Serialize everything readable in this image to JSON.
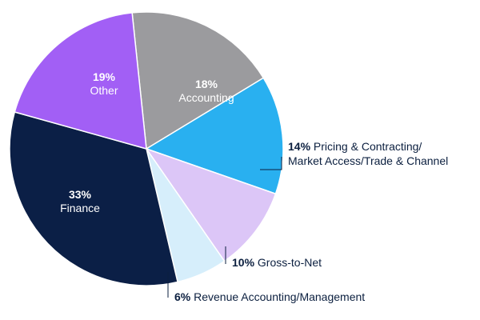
{
  "chart_data": {
    "type": "pie",
    "slices": [
      {
        "label": "Accounting",
        "value": 18,
        "pct_text": "18%",
        "color": "#9b9b9e",
        "text_color": "#ffffff",
        "label_inside": true
      },
      {
        "label": "Pricing & Contracting/ Market Access/Trade & Channel",
        "line1": "Pricing & Contracting/",
        "line2": "Market Access/Trade & Channel",
        "value": 14,
        "pct_text": "14%",
        "color": "#29b0f0",
        "text_color": "#0b1f3f",
        "label_inside": false
      },
      {
        "label": "Gross-to-Net",
        "value": 10,
        "pct_text": "10%",
        "color": "#dcc6f7",
        "text_color": "#0b1f3f",
        "label_inside": false
      },
      {
        "label": "Revenue Accounting/Management",
        "value": 6,
        "pct_text": "6%",
        "color": "#d6eefb",
        "text_color": "#0b1f3f",
        "label_inside": false
      },
      {
        "label": "Finance",
        "value": 33,
        "pct_text": "33%",
        "color": "#0b1f46",
        "text_color": "#ffffff",
        "label_inside": true
      },
      {
        "label": "Other",
        "value": 19,
        "pct_text": "19%",
        "color": "#a25ff5",
        "text_color": "#ffffff",
        "label_inside": true
      }
    ]
  }
}
